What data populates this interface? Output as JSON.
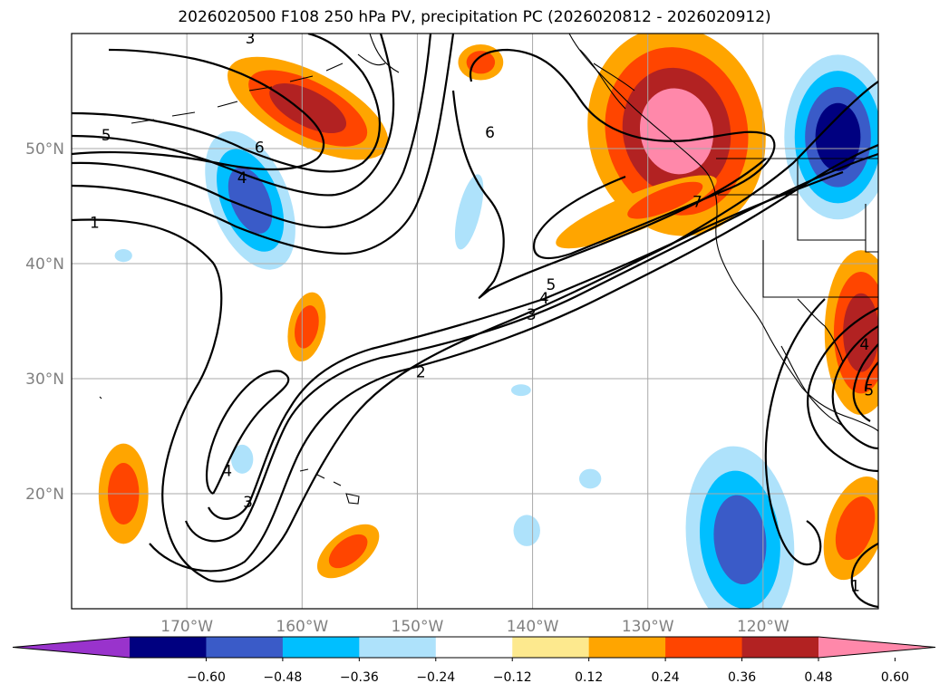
{
  "chart_data": {
    "type": "map-contour-overlay",
    "title": "2026020500 F108 250 hPa PV, precipitation PC (2026020812 - 2026020912)",
    "projection": "Plate Carree",
    "lon_range": [
      -180,
      -110
    ],
    "lat_range": [
      10,
      60
    ],
    "lat_ticks": [
      "20°N",
      "30°N",
      "40°N",
      "50°N"
    ],
    "lon_ticks": [
      "170°W",
      "160°W",
      "150°W",
      "140°W",
      "130°W",
      "120°W"
    ],
    "gridlines": true,
    "contour_field": "250 hPa PV",
    "contour_levels_labeled": [
      "1",
      "2",
      "3",
      "4",
      "5",
      "6",
      "7"
    ],
    "contour_labels": [
      {
        "text": "1",
        "lon": -178,
        "lat": 43.6
      },
      {
        "text": "2",
        "lon": -149.7,
        "lat": 30.6
      },
      {
        "text": "3",
        "lon": -140.1,
        "lat": 35.6
      },
      {
        "text": "4",
        "lon": -139.0,
        "lat": 37.0
      },
      {
        "text": "5",
        "lon": -138.4,
        "lat": 38.2
      },
      {
        "text": "3",
        "lon": -164.7,
        "lat": 19.3
      },
      {
        "text": "4",
        "lon": -166.5,
        "lat": 22.0
      },
      {
        "text": "5",
        "lon": -177,
        "lat": 51.2
      },
      {
        "text": "6",
        "lon": -163.7,
        "lat": 50.1
      },
      {
        "text": "4",
        "lon": -165.2,
        "lat": 47.5
      },
      {
        "text": "3",
        "lon": -164.5,
        "lat": 59.6
      },
      {
        "text": "6",
        "lon": -143.7,
        "lat": 51.4
      },
      {
        "text": "7",
        "lon": -125.7,
        "lat": 45.4
      },
      {
        "text": "4",
        "lon": -111.2,
        "lat": 33.0
      },
      {
        "text": "5",
        "lon": -110.8,
        "lat": 29.0
      },
      {
        "text": "1",
        "lon": -112.0,
        "lat": 12.0
      }
    ],
    "shaded_field": "precipitation PC",
    "colorbar": {
      "ticks": [
        "−0.60",
        "−0.48",
        "−0.36",
        "−0.24",
        "−0.12",
        "0.12",
        "0.24",
        "0.36",
        "0.48",
        "0.60"
      ],
      "bins": [
        {
          "range": [
            -0.72,
            -0.6
          ],
          "color": "#9933cc"
        },
        {
          "range": [
            -0.6,
            -0.48
          ],
          "color": "#000080"
        },
        {
          "range": [
            -0.48,
            -0.36
          ],
          "color": "#3a5bc8"
        },
        {
          "range": [
            -0.36,
            -0.24
          ],
          "color": "#00bfff"
        },
        {
          "range": [
            -0.24,
            -0.12
          ],
          "color": "#aee2fb"
        },
        {
          "range": [
            -0.12,
            0.12
          ],
          "color": "#ffffff"
        },
        {
          "range": [
            0.12,
            0.24
          ],
          "color": "#fde98e"
        },
        {
          "range": [
            0.24,
            0.36
          ],
          "color": "#ffa500"
        },
        {
          "range": [
            0.36,
            0.48
          ],
          "color": "#ff4500"
        },
        {
          "range": [
            0.48,
            0.6
          ],
          "color": "#b22222"
        },
        {
          "range": [
            0.6,
            0.72
          ],
          "color": "#ff88aa"
        }
      ],
      "extend": "both"
    },
    "precip_regions": [
      {
        "name": "aleutian-positive",
        "sign": "positive",
        "levels": 3,
        "lon": -159.5,
        "lat": 53.5
      },
      {
        "name": "north-pacific-negative",
        "sign": "negative",
        "levels": 3,
        "lon": -164.5,
        "lat": 45.5
      },
      {
        "name": "small-negative-40n",
        "sign": "negative",
        "levels": 1,
        "lon": -175.5,
        "lat": 40.7
      },
      {
        "name": "central-pacific-positive",
        "sign": "positive",
        "levels": 2,
        "lon": -159.6,
        "lat": 34.5
      },
      {
        "name": "narrow-negative-145w",
        "sign": "negative",
        "levels": 1,
        "lon": -145.5,
        "lat": 44.5
      },
      {
        "name": "offshore-positive-57n",
        "sign": "positive",
        "levels": 2,
        "lon": -144.5,
        "lat": 57.5
      },
      {
        "name": "pacific-northwest-positive",
        "sign": "positive",
        "levels": 4,
        "lon": -127.5,
        "lat": 51.5
      },
      {
        "name": "canada-negative",
        "sign": "negative",
        "levels": 4,
        "lon": -113.5,
        "lat": 51.0
      },
      {
        "name": "southwest-us-positive",
        "sign": "positive",
        "levels": 3,
        "lon": -111.5,
        "lat": 34.0
      },
      {
        "name": "baja-positive",
        "sign": "positive",
        "levels": 2,
        "lon": -112.0,
        "lat": 17.0
      },
      {
        "name": "subtropical-negative",
        "sign": "negative",
        "levels": 3,
        "lon": -122.0,
        "lat": 16.0
      },
      {
        "name": "west-pacific-positive",
        "sign": "positive",
        "levels": 2,
        "lon": -175.5,
        "lat": 20.0
      },
      {
        "name": "mid-pacific-positive",
        "sign": "positive",
        "levels": 2,
        "lon": -156.0,
        "lat": 15.0
      },
      {
        "name": "small-negative-165w",
        "sign": "negative",
        "levels": 1,
        "lon": -165.2,
        "lat": 23.0
      },
      {
        "name": "small-negative-141w",
        "sign": "negative",
        "levels": 1,
        "lon": -141.0,
        "lat": 29.0
      },
      {
        "name": "small-negative-135w",
        "sign": "negative",
        "levels": 1,
        "lon": -135.0,
        "lat": 21.3
      },
      {
        "name": "small-negative-140w",
        "sign": "negative",
        "levels": 1,
        "lon": -140.5,
        "lat": 16.8
      }
    ]
  }
}
